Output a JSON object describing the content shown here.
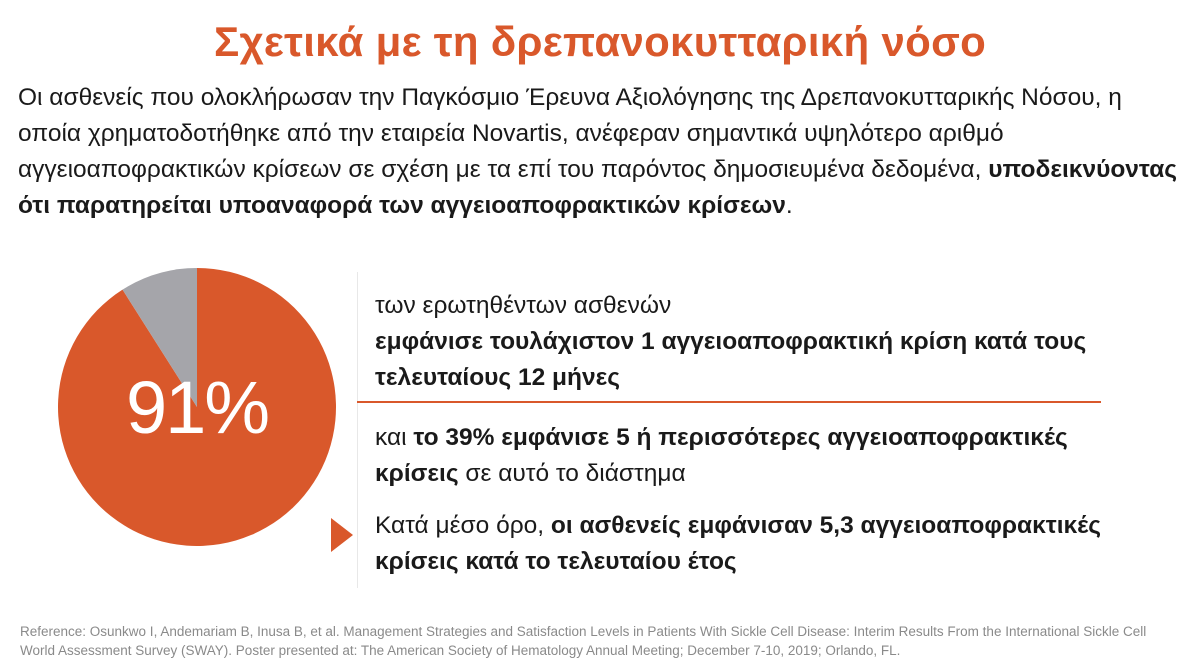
{
  "title": "Σχετικά με τη δρεπανοκυτταρική νόσο",
  "intro": {
    "normal": "Οι ασθενείς που ολοκλήρωσαν την Παγκόσμιο Έρευνα Αξιολόγησης της Δρεπανοκυτταρικής Νόσου, η οποία χρηματοδοτήθηκε από την εταιρεία Novartis, ανέφεραν σημαντικά υψηλότερο αριθμό αγγειοαποφρακτικών κρίσεων σε σχέση με τα επί του παρόντος δημοσιευμένα δεδομένα, ",
    "bold": "υποδεικνύοντας ότι παρατηρείται υποαναφορά των αγγειοαποφρακτικών κρίσεων",
    "end": "."
  },
  "pie": {
    "label": "91%",
    "percent": 91,
    "colors": {
      "main": "#d9582b",
      "rest": "#a5a5aa"
    }
  },
  "stat1": {
    "line1": "των ερωτηθέντων ασθενών",
    "bold": "εμφάνισε τουλάχιστον 1 αγγειοαποφρακτική κρίση κατά τους τελευταίους 12 μήνες"
  },
  "stat2": {
    "pre": "και ",
    "bold": "το 39% εμφάνισε 5 ή περισσότερες αγγειοαποφρακτικές κρίσεις",
    "post": " σε αυτό το διάστημα"
  },
  "stat3": {
    "pre": "Κατά μέσο όρο, ",
    "bold": "οι ασθενείς εμφάνισαν 5,3 αγγειοαποφρακτικές κρίσεις κατά το τελευταίου έτος"
  },
  "reference": "Reference: Osunkwo I, Andemariam B, Inusa B, et al. Management Strategies and Satisfaction Levels in Patients With Sickle Cell Disease: Interim Results From the International Sickle Cell World Assessment Survey (SWAY). Poster presented at: The American Society of Hematology Annual Meeting; December 7-10, 2019; Orlando, FL."
}
